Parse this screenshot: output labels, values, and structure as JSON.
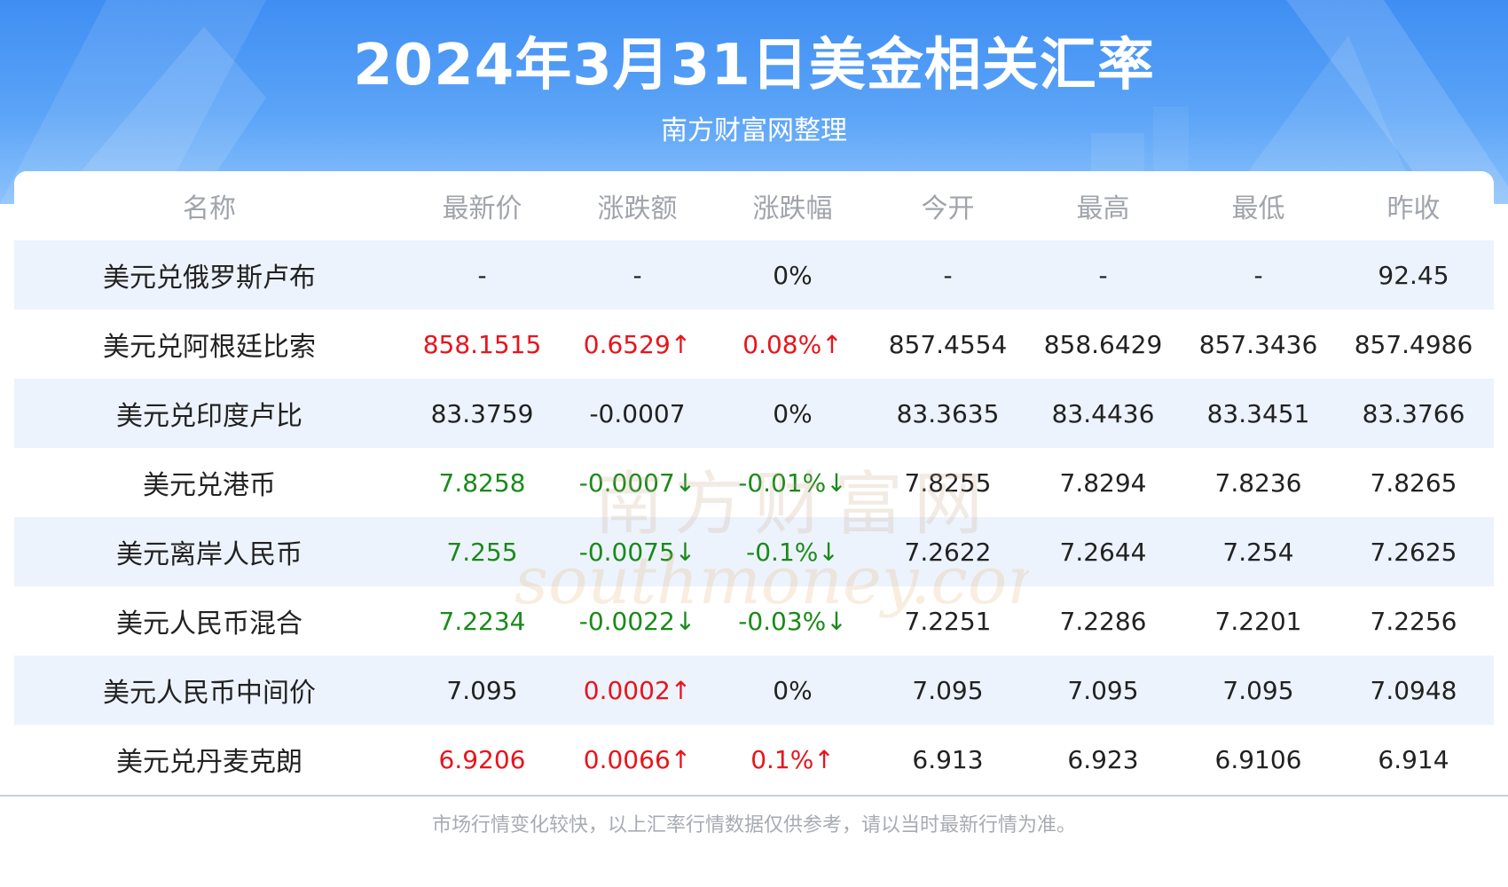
{
  "header": {
    "title": "2024年3月31日美金相关汇率",
    "subtitle": "南方财富网整理"
  },
  "table": {
    "columns": [
      "名称",
      "最新价",
      "涨跌额",
      "涨跌幅",
      "今开",
      "最高",
      "最低",
      "昨收"
    ],
    "rows": [
      {
        "name": "美元兑俄罗斯卢布",
        "latest": "-",
        "change": "-",
        "pct": "0%",
        "open": "-",
        "high": "-",
        "low": "-",
        "prev": "92.45",
        "trend": "flat"
      },
      {
        "name": "美元兑阿根廷比索",
        "latest": "858.1515",
        "change": "0.6529↑",
        "pct": "0.08%↑",
        "open": "857.4554",
        "high": "858.6429",
        "low": "857.3436",
        "prev": "857.4986",
        "trend": "up"
      },
      {
        "name": "美元兑印度卢比",
        "latest": "83.3759",
        "change": "-0.0007",
        "pct": "0%",
        "open": "83.3635",
        "high": "83.4436",
        "low": "83.3451",
        "prev": "83.3766",
        "trend": "flat"
      },
      {
        "name": "美元兑港币",
        "latest": "7.8258",
        "change": "-0.0007↓",
        "pct": "-0.01%↓",
        "open": "7.8255",
        "high": "7.8294",
        "low": "7.8236",
        "prev": "7.8265",
        "trend": "down"
      },
      {
        "name": "美元离岸人民币",
        "latest": "7.255",
        "change": "-0.0075↓",
        "pct": "-0.1%↓",
        "open": "7.2622",
        "high": "7.2644",
        "low": "7.254",
        "prev": "7.2625",
        "trend": "down"
      },
      {
        "name": "美元人民币混合",
        "latest": "7.2234",
        "change": "-0.0022↓",
        "pct": "-0.03%↓",
        "open": "7.2251",
        "high": "7.2286",
        "low": "7.2201",
        "prev": "7.2256",
        "trend": "down"
      },
      {
        "name": "美元人民币中间价",
        "latest": "7.095",
        "change": "0.0002↑",
        "pct": "0%",
        "open": "7.095",
        "high": "7.095",
        "low": "7.095",
        "prev": "7.0948",
        "trend": "up_change_only"
      },
      {
        "name": "美元兑丹麦克朗",
        "latest": "6.9206",
        "change": "0.0066↑",
        "pct": "0.1%↑",
        "open": "6.913",
        "high": "6.923",
        "low": "6.9106",
        "prev": "6.914",
        "trend": "up"
      }
    ]
  },
  "watermark": {
    "cn": "南方财富网",
    "en": "southmoney.com"
  },
  "footer": {
    "note": "市场行情变化较快，以上汇率行情数据仅供参考，请以当时最新行情为准。"
  },
  "colors": {
    "up": "#e8141c",
    "down": "#1a8a1a",
    "header_blue": "#4a96f5",
    "stripe": "#edf3fc"
  }
}
